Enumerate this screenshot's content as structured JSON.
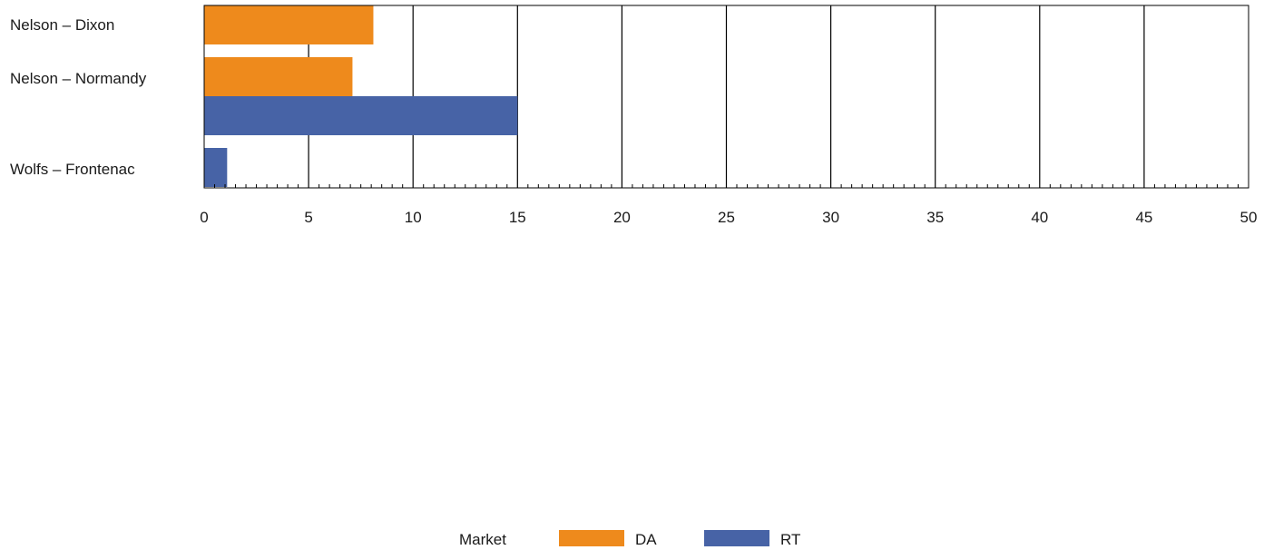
{
  "chart_data": {
    "type": "bar",
    "orientation": "horizontal",
    "categories": [
      "Nelson – Dixon",
      "Nelson – Normandy",
      "Wolfs – Frontenac"
    ],
    "series": [
      {
        "name": "DA",
        "color": "#ee8a1c",
        "values": [
          8.1,
          7.1,
          null
        ]
      },
      {
        "name": "RT",
        "color": "#4763a6",
        "values": [
          null,
          15.0,
          1.1
        ]
      }
    ],
    "title": "",
    "xlabel": "",
    "ylabel": "",
    "xlim": [
      0,
      50
    ],
    "xticks": [
      "0",
      "5",
      "10",
      "15",
      "20",
      "25",
      "30",
      "35",
      "40",
      "45",
      "50"
    ],
    "grid": "vertical",
    "legend": {
      "title": "Market",
      "placement": "bottom-center",
      "entries": [
        "DA",
        "RT"
      ]
    }
  }
}
